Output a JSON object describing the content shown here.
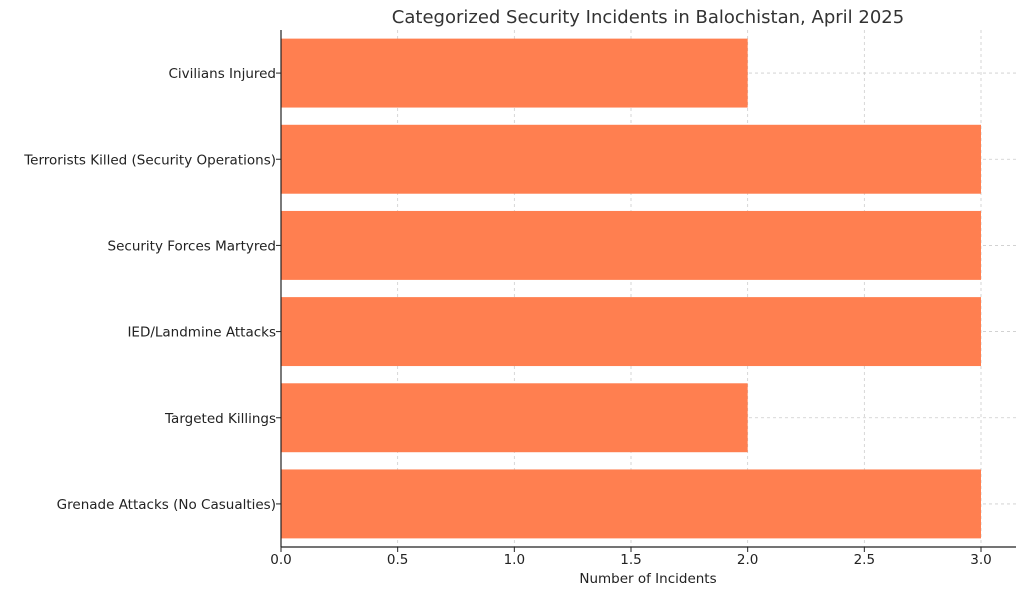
{
  "chart_data": {
    "type": "bar",
    "orientation": "horizontal",
    "title": "Categorized Security Incidents in Balochistan, April 2025",
    "xlabel": "Number of Incidents",
    "ylabel": "",
    "categories": [
      "Grenade Attacks (No Casualties)",
      "Targeted Killings",
      "IED/Landmine Attacks",
      "Security Forces Martyred",
      "Terrorists Killed (Security Operations)",
      "Civilians Injured"
    ],
    "values": [
      3,
      2,
      3,
      3,
      3,
      2
    ],
    "xlim": [
      0,
      3.15
    ],
    "xticks": [
      "0.0",
      "0.5",
      "1.0",
      "1.5",
      "2.0",
      "2.5",
      "3.0"
    ],
    "grid": true,
    "bar_color": "#ff7f50"
  }
}
